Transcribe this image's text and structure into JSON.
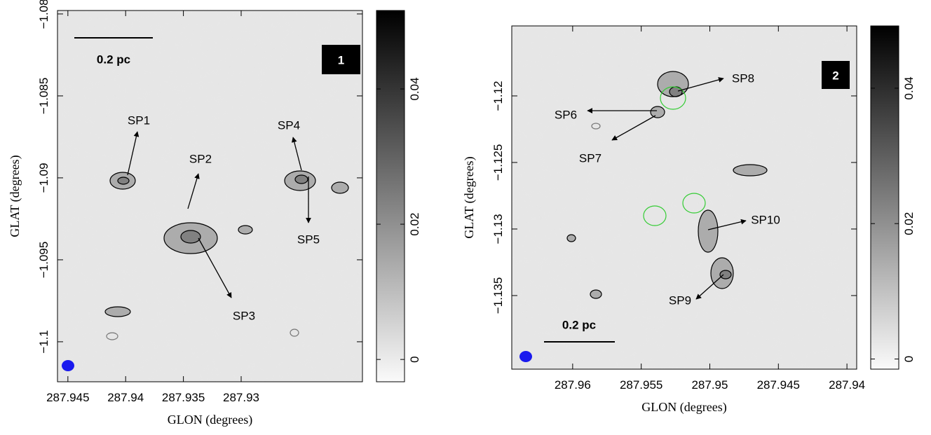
{
  "chart_data": [
    {
      "type": "image",
      "xlabel": "GLON (degrees)",
      "ylabel": "GLAT (degrees)",
      "panel_label": "1",
      "scale_bar": "0.2 pc",
      "xlim": [
        287.9459,
        287.9195
      ],
      "ylim": [
        -1.10244,
        -1.07979
      ],
      "xticks": [
        287.945,
        287.94,
        287.935,
        287.93
      ],
      "yticks": [
        {
          "value": -1.08,
          "label": "−1.08"
        },
        {
          "value": -1.085,
          "label": "−1.085"
        },
        {
          "value": -1.09,
          "label": "−1.09"
        },
        {
          "value": -1.095,
          "label": "−1.095"
        },
        {
          "value": -1.1,
          "label": "−1.1"
        }
      ],
      "colorbar": {
        "lim": [
          -0.0033,
          0.0516
        ],
        "ticks": [
          0,
          0.02,
          0.04
        ]
      },
      "annotations": [
        "SP1",
        "SP2",
        "SP3",
        "SP4",
        "SP5"
      ]
    },
    {
      "type": "image",
      "xlabel": "GLON (degrees)",
      "ylabel": "GLAT (degrees)",
      "panel_label": "2",
      "scale_bar": "0.2 pc",
      "xlim": [
        287.96444,
        287.93929
      ],
      "ylim": [
        -1.14053,
        -1.11474
      ],
      "xticks": [
        287.96,
        287.955,
        287.95,
        287.945,
        287.94
      ],
      "yticks": [
        {
          "value": -1.12,
          "label": "−1.12"
        },
        {
          "value": -1.125,
          "label": "−1.125"
        },
        {
          "value": -1.13,
          "label": "−1.13"
        },
        {
          "value": -1.135,
          "label": "−1.135"
        }
      ],
      "colorbar": {
        "lim": [
          -0.0015,
          0.0492
        ],
        "ticks": [
          0,
          0.02,
          0.04
        ]
      },
      "annotations": [
        "SP8",
        "SP6",
        "SP7",
        "SP10",
        "SP9"
      ]
    }
  ]
}
